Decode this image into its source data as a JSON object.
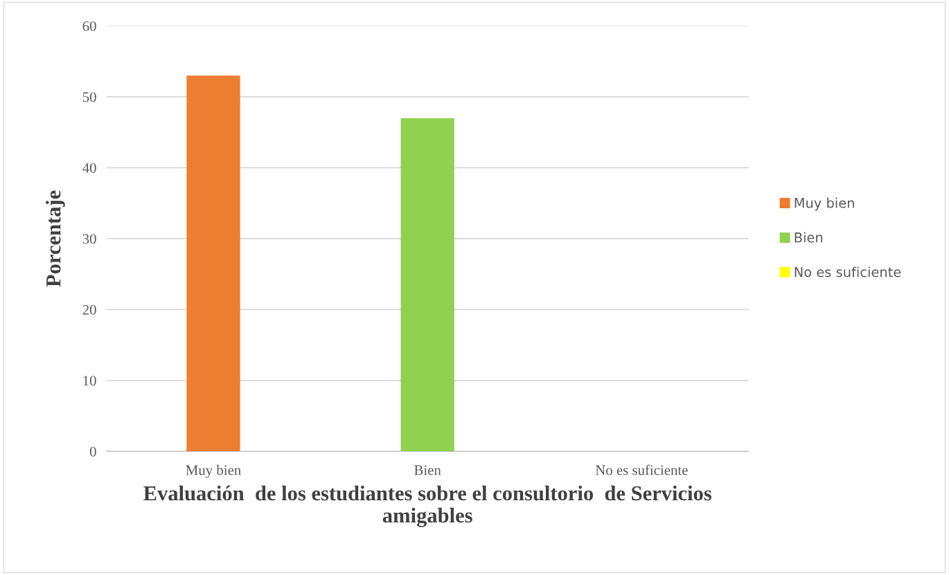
{
  "chart_data": {
    "type": "bar",
    "xlabel": "Evaluación  de los estudiantes sobre el consultorio  de Servicios\namigables",
    "ylabel": "Porcentaje",
    "categories": [
      "Muy bien",
      "Bien",
      "No es suficiente"
    ],
    "series": [
      {
        "name": "Muy bien",
        "color": "#ed7d31",
        "values": [
          53,
          null,
          null
        ]
      },
      {
        "name": "Bien",
        "color": "#92d050",
        "values": [
          null,
          47,
          null
        ]
      },
      {
        "name": "No es suficiente",
        "color": "#ffff00",
        "values": [
          null,
          null,
          0
        ]
      }
    ],
    "ylim": [
      0,
      60
    ],
    "yticks": [
      0,
      10,
      20,
      30,
      40,
      50,
      60
    ],
    "grid": "y",
    "legend": "right"
  }
}
